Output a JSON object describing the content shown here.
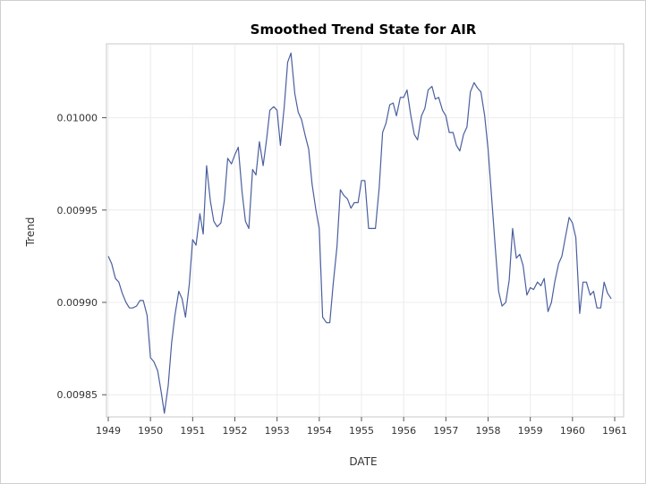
{
  "chart_data": {
    "type": "line",
    "title": "Smoothed Trend State for AIR",
    "xlabel": "DATE",
    "ylabel": "Trend",
    "xlim": [
      1949.0,
      1961.0
    ],
    "ylim": [
      0.009838,
      0.01004
    ],
    "grid": true,
    "x_ticks": [
      "1949",
      "1950",
      "1951",
      "1952",
      "1953",
      "1954",
      "1955",
      "1956",
      "1957",
      "1958",
      "1959",
      "1960",
      "1961"
    ],
    "y_ticks": [
      "0.00985",
      "0.00990",
      "0.00995",
      "0.01000"
    ],
    "series": [
      {
        "name": "",
        "color": "#4a5f9e",
        "x": [
          1949.0,
          1949.08,
          1949.17,
          1949.25,
          1949.33,
          1949.42,
          1949.5,
          1949.58,
          1949.67,
          1949.75,
          1949.83,
          1949.92,
          1950.0,
          1950.08,
          1950.17,
          1950.25,
          1950.33,
          1950.42,
          1950.5,
          1950.58,
          1950.67,
          1950.75,
          1950.83,
          1950.92,
          1951.0,
          1951.08,
          1951.17,
          1951.25,
          1951.33,
          1951.42,
          1951.5,
          1951.58,
          1951.67,
          1951.75,
          1951.83,
          1951.92,
          1952.0,
          1952.08,
          1952.17,
          1952.25,
          1952.33,
          1952.42,
          1952.5,
          1952.58,
          1952.67,
          1952.75,
          1952.83,
          1952.92,
          1953.0,
          1953.08,
          1953.17,
          1953.25,
          1953.33,
          1953.42,
          1953.5,
          1953.58,
          1953.67,
          1953.75,
          1953.83,
          1953.92,
          1954.0,
          1954.08,
          1954.17,
          1954.25,
          1954.33,
          1954.42,
          1954.5,
          1954.58,
          1954.67,
          1954.75,
          1954.83,
          1954.92,
          1955.0,
          1955.08,
          1955.17,
          1955.25,
          1955.33,
          1955.42,
          1955.5,
          1955.58,
          1955.67,
          1955.75,
          1955.83,
          1955.92,
          1956.0,
          1956.08,
          1956.17,
          1956.25,
          1956.33,
          1956.42,
          1956.5,
          1956.58,
          1956.67,
          1956.75,
          1956.83,
          1956.92,
          1957.0,
          1957.08,
          1957.17,
          1957.25,
          1957.33,
          1957.42,
          1957.5,
          1957.58,
          1957.67,
          1957.75,
          1957.83,
          1957.92,
          1958.0,
          1958.08,
          1958.17,
          1958.25,
          1958.33,
          1958.42,
          1958.5,
          1958.58,
          1958.67,
          1958.75,
          1958.83,
          1958.92,
          1959.0,
          1959.08,
          1959.17,
          1959.25,
          1959.33,
          1959.42,
          1959.5,
          1959.58,
          1959.67,
          1959.75,
          1959.83,
          1959.92,
          1960.0,
          1960.08,
          1960.17,
          1960.25,
          1960.33,
          1960.42,
          1960.5,
          1960.58,
          1960.67,
          1960.75,
          1960.83,
          1960.92
        ],
        "y": [
          0.009925,
          0.009921,
          0.009913,
          0.009911,
          0.009905,
          0.0099,
          0.009897,
          0.009897,
          0.009898,
          0.009901,
          0.009901,
          0.009893,
          0.00987,
          0.009868,
          0.009863,
          0.009852,
          0.00984,
          0.009855,
          0.009878,
          0.009893,
          0.009906,
          0.009902,
          0.009892,
          0.00991,
          0.009934,
          0.009931,
          0.009948,
          0.009937,
          0.009974,
          0.009955,
          0.009944,
          0.009941,
          0.009943,
          0.009955,
          0.009978,
          0.009975,
          0.00998,
          0.009984,
          0.00996,
          0.009944,
          0.00994,
          0.009972,
          0.009969,
          0.009987,
          0.009974,
          0.009988,
          0.010004,
          0.010006,
          0.010004,
          0.009985,
          0.010006,
          0.01003,
          0.010035,
          0.010013,
          0.010003,
          0.009999,
          0.00999,
          0.009983,
          0.009964,
          0.00995,
          0.00994,
          0.009892,
          0.009889,
          0.009889,
          0.00991,
          0.00993,
          0.009961,
          0.009958,
          0.009956,
          0.009951,
          0.009954,
          0.009954,
          0.009966,
          0.009966,
          0.00994,
          0.00994,
          0.00994,
          0.009962,
          0.009992,
          0.009997,
          0.010007,
          0.010008,
          0.010001,
          0.010011,
          0.010011,
          0.010015,
          0.010001,
          0.009991,
          0.009988,
          0.010001,
          0.010005,
          0.010015,
          0.010017,
          0.01001,
          0.010011,
          0.010004,
          0.010001,
          0.009992,
          0.009992,
          0.009985,
          0.009982,
          0.009991,
          0.009995,
          0.010014,
          0.010019,
          0.010016,
          0.010014,
          0.010001,
          0.009983,
          0.009958,
          0.00993,
          0.009906,
          0.009898,
          0.0099,
          0.009912,
          0.00994,
          0.009924,
          0.009926,
          0.00992,
          0.009904,
          0.009908,
          0.009907,
          0.009911,
          0.009909,
          0.009913,
          0.009895,
          0.0099,
          0.009911,
          0.009921,
          0.009925,
          0.009935,
          0.009946,
          0.009943,
          0.009935,
          0.009894,
          0.009911,
          0.009911,
          0.009904,
          0.009906,
          0.009897,
          0.009897,
          0.009911,
          0.009905,
          0.009902
        ]
      }
    ]
  }
}
